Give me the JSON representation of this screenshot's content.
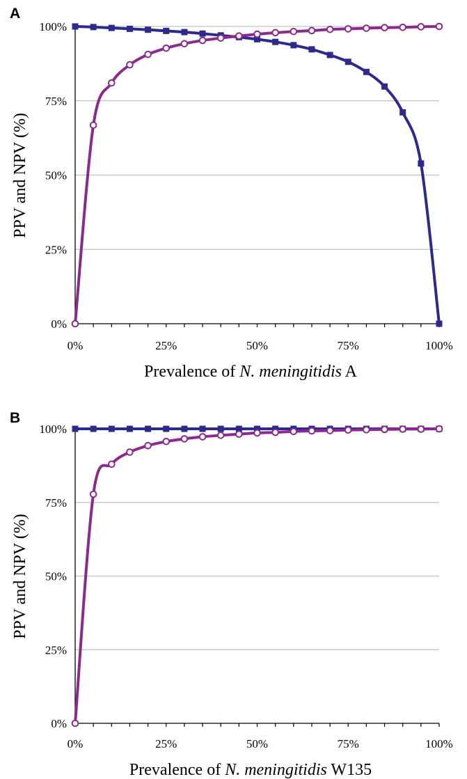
{
  "chart_data": [
    {
      "panel": "A",
      "type": "line",
      "xlabel_prefix": "Prevalence of ",
      "xlabel_italic": "N. meningitidis",
      "xlabel_suffix": " A",
      "ylabel": "PPV and NPV (%)",
      "xlim": [
        0,
        100
      ],
      "ylim": [
        0,
        100
      ],
      "xticks": [
        "0%",
        "25%",
        "50%",
        "75%",
        "100%"
      ],
      "yticks": [
        "0%",
        "25%",
        "50%",
        "75%",
        "100%"
      ],
      "grid": "horizontal",
      "x": [
        0,
        5,
        10,
        15,
        20,
        25,
        30,
        35,
        40,
        45,
        50,
        55,
        60,
        65,
        70,
        75,
        80,
        85,
        90,
        95,
        100
      ],
      "series": [
        {
          "marker": "square",
          "color": "#2e2a8c",
          "values": [
            100,
            99.8,
            99.5,
            99.2,
            98.9,
            98.5,
            98.1,
            97.6,
            97.0,
            96.4,
            95.7,
            94.8,
            93.7,
            92.3,
            90.4,
            88.1,
            84.7,
            79.8,
            71.1,
            53.9,
            0
          ]
        },
        {
          "marker": "open-circle",
          "color": "#8b2a8c",
          "values": [
            0,
            66.8,
            81.0,
            87.1,
            90.6,
            92.7,
            94.2,
            95.3,
            96.1,
            96.8,
            97.4,
            97.9,
            98.3,
            98.6,
            99.0,
            99.2,
            99.4,
            99.6,
            99.7,
            99.9,
            100
          ]
        }
      ]
    },
    {
      "panel": "B",
      "type": "line",
      "xlabel_prefix": "Prevalence of ",
      "xlabel_italic": "N. meningitidis",
      "xlabel_suffix": " W135",
      "ylabel": "PPV and NPV (%)",
      "xlim": [
        0,
        100
      ],
      "ylim": [
        0,
        100
      ],
      "xticks": [
        "0%",
        "25%",
        "50%",
        "75%",
        "100%"
      ],
      "yticks": [
        "0%",
        "25%",
        "50%",
        "75%",
        "100%"
      ],
      "grid": "horizontal",
      "x": [
        0,
        5,
        10,
        15,
        20,
        25,
        30,
        35,
        40,
        45,
        50,
        55,
        60,
        65,
        70,
        75,
        80,
        85,
        90,
        95,
        100
      ],
      "series": [
        {
          "marker": "square",
          "color": "#2e2a8c",
          "values": [
            100,
            100,
            100,
            100,
            100,
            100,
            100,
            100,
            100,
            100,
            100,
            100,
            100,
            100,
            100,
            100,
            100,
            100,
            100,
            100,
            100
          ]
        },
        {
          "marker": "open-circle",
          "color": "#8b2a8c",
          "values": [
            0,
            77.8,
            88.0,
            92.1,
            94.3,
            95.7,
            96.6,
            97.3,
            97.8,
            98.2,
            98.6,
            98.8,
            99.1,
            99.3,
            99.4,
            99.6,
            99.7,
            99.8,
            99.9,
            99.9,
            100
          ]
        }
      ]
    }
  ]
}
